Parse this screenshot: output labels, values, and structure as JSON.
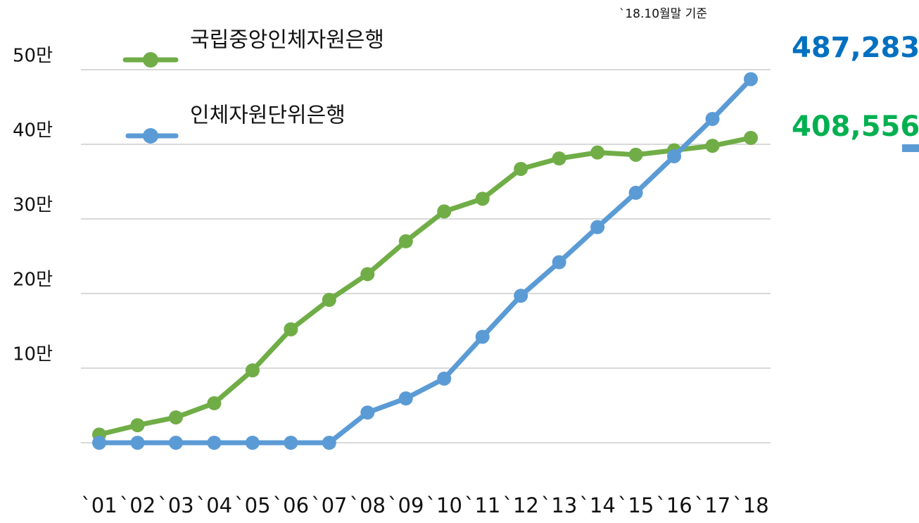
{
  "chart_data": {
    "type": "line",
    "annotation": "`18.10월말 기준",
    "categories": [
      "`01",
      "`02",
      "`03",
      "`04",
      "`05",
      "`06",
      "`07",
      "`08",
      "`09",
      "`10",
      "`11",
      "`12",
      "`13",
      "`14",
      "`15",
      "`16",
      "`17",
      "`18"
    ],
    "series": [
      {
        "name": "국립중앙인체자원은행",
        "color": "#70ad47",
        "values": [
          11000,
          23500,
          34000,
          53000,
          97000,
          152000,
          191500,
          226000,
          270000,
          310000,
          327000,
          367000,
          381000,
          389000,
          386000,
          392000,
          398000,
          408556
        ],
        "value_labels": [
          null,
          null,
          null,
          null,
          null,
          null,
          null,
          null,
          null,
          null,
          null,
          null,
          null,
          null,
          null,
          null,
          null,
          "408,556"
        ],
        "label_color": "#00b050"
      },
      {
        "name": "인체자원단위은행",
        "color": "#5b9bd5",
        "values": [
          0,
          0,
          0,
          0,
          0,
          0,
          0,
          40500,
          59400,
          86000,
          142000,
          197000,
          242000,
          289000,
          335000,
          384000,
          434000,
          487283
        ],
        "value_labels": [
          null,
          null,
          null,
          null,
          null,
          null,
          null,
          null,
          null,
          null,
          null,
          null,
          null,
          null,
          null,
          null,
          null,
          "487,283"
        ],
        "label_color": "#0070c0"
      }
    ],
    "ylim": [
      0,
      500000
    ],
    "yticks": [
      {
        "value": 100000,
        "label": "10만"
      },
      {
        "value": 200000,
        "label": "20만"
      },
      {
        "value": 300000,
        "label": "30만"
      },
      {
        "value": 400000,
        "label": "40만"
      },
      {
        "value": 500000,
        "label": "50만"
      }
    ],
    "grid": true
  }
}
